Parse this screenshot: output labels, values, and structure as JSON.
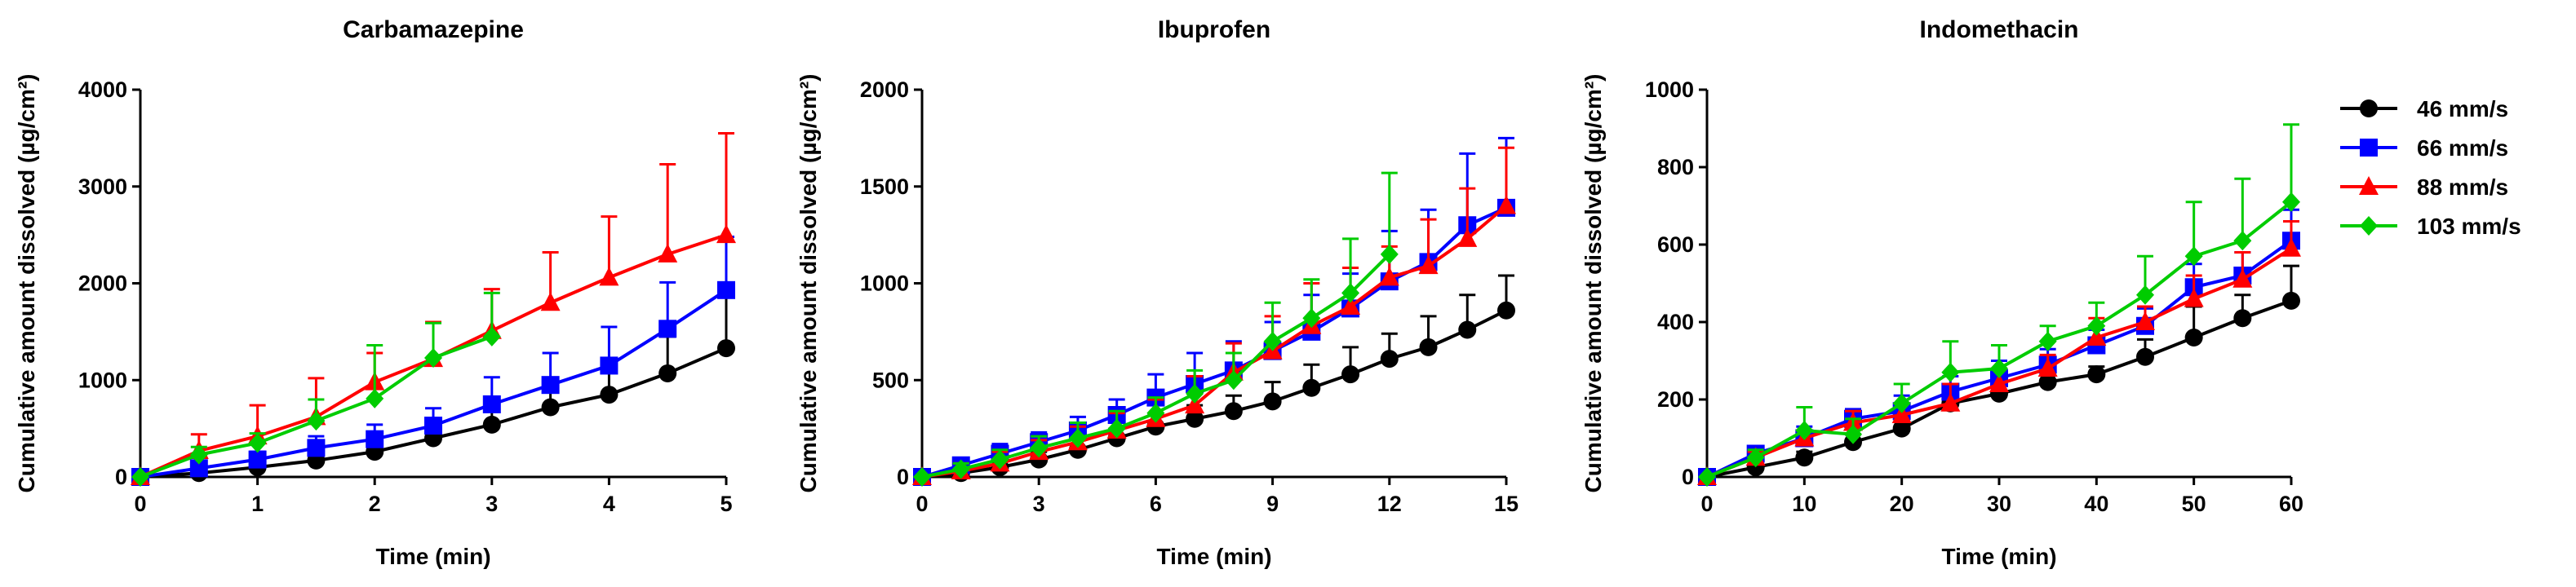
{
  "colors": {
    "46 mm/s": "#000000",
    "66 mm/s": "#0000ff",
    "88 mm/s": "#ff0000",
    "103 mm/s": "#00cc00"
  },
  "legend": [
    {
      "name": "46 mm/s",
      "marker": "circle"
    },
    {
      "name": "66 mm/s",
      "marker": "square"
    },
    {
      "name": "88 mm/s",
      "marker": "triangle"
    },
    {
      "name": "103 mm/s",
      "marker": "diamond"
    }
  ],
  "chart_data": [
    {
      "type": "line",
      "title": "Carbamazepine",
      "xlabel": "Time (min)",
      "ylabel": "Cumulative amount dissolved (µg/cm²)",
      "xlim": [
        0,
        5
      ],
      "ylim": [
        0,
        4000
      ],
      "xticks": [
        0,
        1,
        2,
        3,
        4,
        5
      ],
      "yticks": [
        0,
        1000,
        2000,
        3000,
        4000
      ],
      "series": [
        {
          "name": "46 mm/s",
          "marker": "circle",
          "x": [
            0,
            0.5,
            1,
            1.5,
            2,
            2.5,
            3,
            3.5,
            4,
            4.5,
            5
          ],
          "y": [
            0,
            40,
            100,
            170,
            260,
            400,
            540,
            720,
            850,
            1070,
            1330
          ],
          "err": [
            0,
            30,
            70,
            150,
            200,
            150,
            200,
            250,
            300,
            380,
            580
          ]
        },
        {
          "name": "66 mm/s",
          "marker": "square",
          "x": [
            0,
            0.5,
            1,
            1.5,
            2,
            2.5,
            3,
            3.5,
            4,
            4.5,
            5
          ],
          "y": [
            0,
            90,
            180,
            300,
            390,
            530,
            750,
            950,
            1150,
            1530,
            1930
          ],
          "err": [
            0,
            40,
            80,
            120,
            150,
            180,
            280,
            330,
            400,
            480,
            550
          ]
        },
        {
          "name": "88 mm/s",
          "marker": "triangle",
          "x": [
            0,
            0.5,
            1,
            1.5,
            2,
            2.5,
            3,
            3.5,
            4,
            4.5,
            5
          ],
          "y": [
            0,
            270,
            420,
            620,
            980,
            1220,
            1510,
            1800,
            2060,
            2300,
            2500
          ],
          "err": [
            0,
            170,
            320,
            400,
            300,
            380,
            430,
            520,
            630,
            930,
            1050
          ]
        },
        {
          "name": "103 mm/s",
          "marker": "diamond",
          "x": [
            0,
            0.5,
            1,
            1.5,
            2,
            2.5,
            3
          ],
          "y": [
            0,
            230,
            350,
            580,
            810,
            1230,
            1450
          ],
          "err": [
            0,
            80,
            100,
            220,
            550,
            360,
            450
          ]
        }
      ]
    },
    {
      "type": "line",
      "title": "Ibuprofen",
      "xlabel": "Time (min)",
      "ylabel": "Cumulative amount dissolved (µg/cm²)",
      "xlim": [
        0,
        15
      ],
      "ylim": [
        0,
        2000
      ],
      "xticks": [
        0,
        3,
        6,
        9,
        12,
        15
      ],
      "yticks": [
        0,
        500,
        1000,
        1500,
        2000
      ],
      "series": [
        {
          "name": "46 mm/s",
          "marker": "circle",
          "x": [
            0,
            1,
            2,
            3,
            4,
            5,
            6,
            7,
            8,
            9,
            10,
            11,
            12,
            13,
            14,
            15
          ],
          "y": [
            0,
            20,
            50,
            90,
            140,
            200,
            260,
            300,
            340,
            390,
            460,
            530,
            610,
            670,
            760,
            860
          ],
          "err": [
            0,
            15,
            30,
            40,
            50,
            50,
            60,
            70,
            80,
            100,
            120,
            140,
            130,
            160,
            180,
            180
          ]
        },
        {
          "name": "66 mm/s",
          "marker": "square",
          "x": [
            0,
            1,
            2,
            3,
            4,
            5,
            6,
            7,
            8,
            9,
            10,
            11,
            12,
            13,
            14,
            15
          ],
          "y": [
            0,
            60,
            120,
            180,
            240,
            320,
            410,
            480,
            550,
            650,
            750,
            870,
            1010,
            1110,
            1300,
            1390
          ],
          "err": [
            0,
            30,
            50,
            50,
            70,
            80,
            120,
            160,
            150,
            150,
            190,
            180,
            260,
            270,
            370,
            360
          ]
        },
        {
          "name": "88 mm/s",
          "marker": "triangle",
          "x": [
            0,
            1,
            2,
            3,
            4,
            5,
            6,
            7,
            8,
            9,
            10,
            11,
            12,
            13,
            14,
            15
          ],
          "y": [
            0,
            30,
            70,
            130,
            180,
            240,
            300,
            370,
            540,
            650,
            780,
            880,
            1030,
            1090,
            1230,
            1400
          ],
          "err": [
            0,
            40,
            60,
            60,
            80,
            90,
            100,
            150,
            150,
            180,
            220,
            200,
            160,
            240,
            260,
            300
          ]
        },
        {
          "name": "103 mm/s",
          "marker": "diamond",
          "x": [
            0,
            1,
            2,
            3,
            4,
            5,
            6,
            7,
            8,
            9,
            10,
            11,
            12
          ],
          "y": [
            0,
            40,
            90,
            150,
            200,
            250,
            330,
            430,
            500,
            700,
            820,
            950,
            1150
          ],
          "err": [
            0,
            30,
            50,
            60,
            80,
            90,
            80,
            120,
            140,
            200,
            200,
            280,
            420
          ]
        }
      ]
    },
    {
      "type": "line",
      "title": "Indomethacin",
      "xlabel": "Time (min)",
      "ylabel": "Cumulative amount dissolved (µg/cm²)",
      "xlim": [
        0,
        60
      ],
      "ylim": [
        0,
        1000
      ],
      "xticks": [
        0,
        10,
        20,
        30,
        40,
        50,
        60
      ],
      "yticks": [
        0,
        200,
        400,
        600,
        800,
        1000
      ],
      "series": [
        {
          "name": "46 mm/s",
          "marker": "circle",
          "x": [
            0,
            5,
            10,
            15,
            20,
            25,
            30,
            35,
            40,
            45,
            50,
            55,
            60
          ],
          "y": [
            0,
            25,
            50,
            90,
            125,
            190,
            215,
            245,
            265,
            310,
            360,
            410,
            455
          ],
          "err": [
            0,
            10,
            15,
            20,
            20,
            20,
            25,
            25,
            20,
            45,
            80,
            60,
            90
          ]
        },
        {
          "name": "66 mm/s",
          "marker": "square",
          "x": [
            0,
            5,
            10,
            15,
            20,
            25,
            30,
            35,
            40,
            45,
            50,
            55,
            60
          ],
          "y": [
            0,
            60,
            100,
            150,
            170,
            220,
            255,
            290,
            340,
            390,
            490,
            520,
            610
          ],
          "err": [
            0,
            10,
            30,
            25,
            40,
            40,
            45,
            40,
            40,
            45,
            60,
            60,
            80
          ]
        },
        {
          "name": "88 mm/s",
          "marker": "triangle",
          "x": [
            0,
            5,
            10,
            15,
            20,
            25,
            30,
            35,
            40,
            45,
            50,
            55,
            60
          ],
          "y": [
            0,
            50,
            100,
            140,
            160,
            190,
            240,
            280,
            360,
            400,
            460,
            510,
            590
          ],
          "err": [
            0,
            15,
            20,
            30,
            30,
            50,
            40,
            35,
            50,
            40,
            60,
            70,
            70
          ]
        },
        {
          "name": "103 mm/s",
          "marker": "diamond",
          "x": [
            0,
            5,
            10,
            15,
            20,
            25,
            30,
            35,
            40,
            45,
            50,
            55,
            60
          ],
          "y": [
            0,
            50,
            120,
            110,
            190,
            270,
            280,
            350,
            390,
            470,
            570,
            610,
            710
          ],
          "err": [
            0,
            20,
            60,
            40,
            50,
            80,
            60,
            40,
            60,
            100,
            140,
            160,
            200
          ]
        }
      ]
    }
  ]
}
